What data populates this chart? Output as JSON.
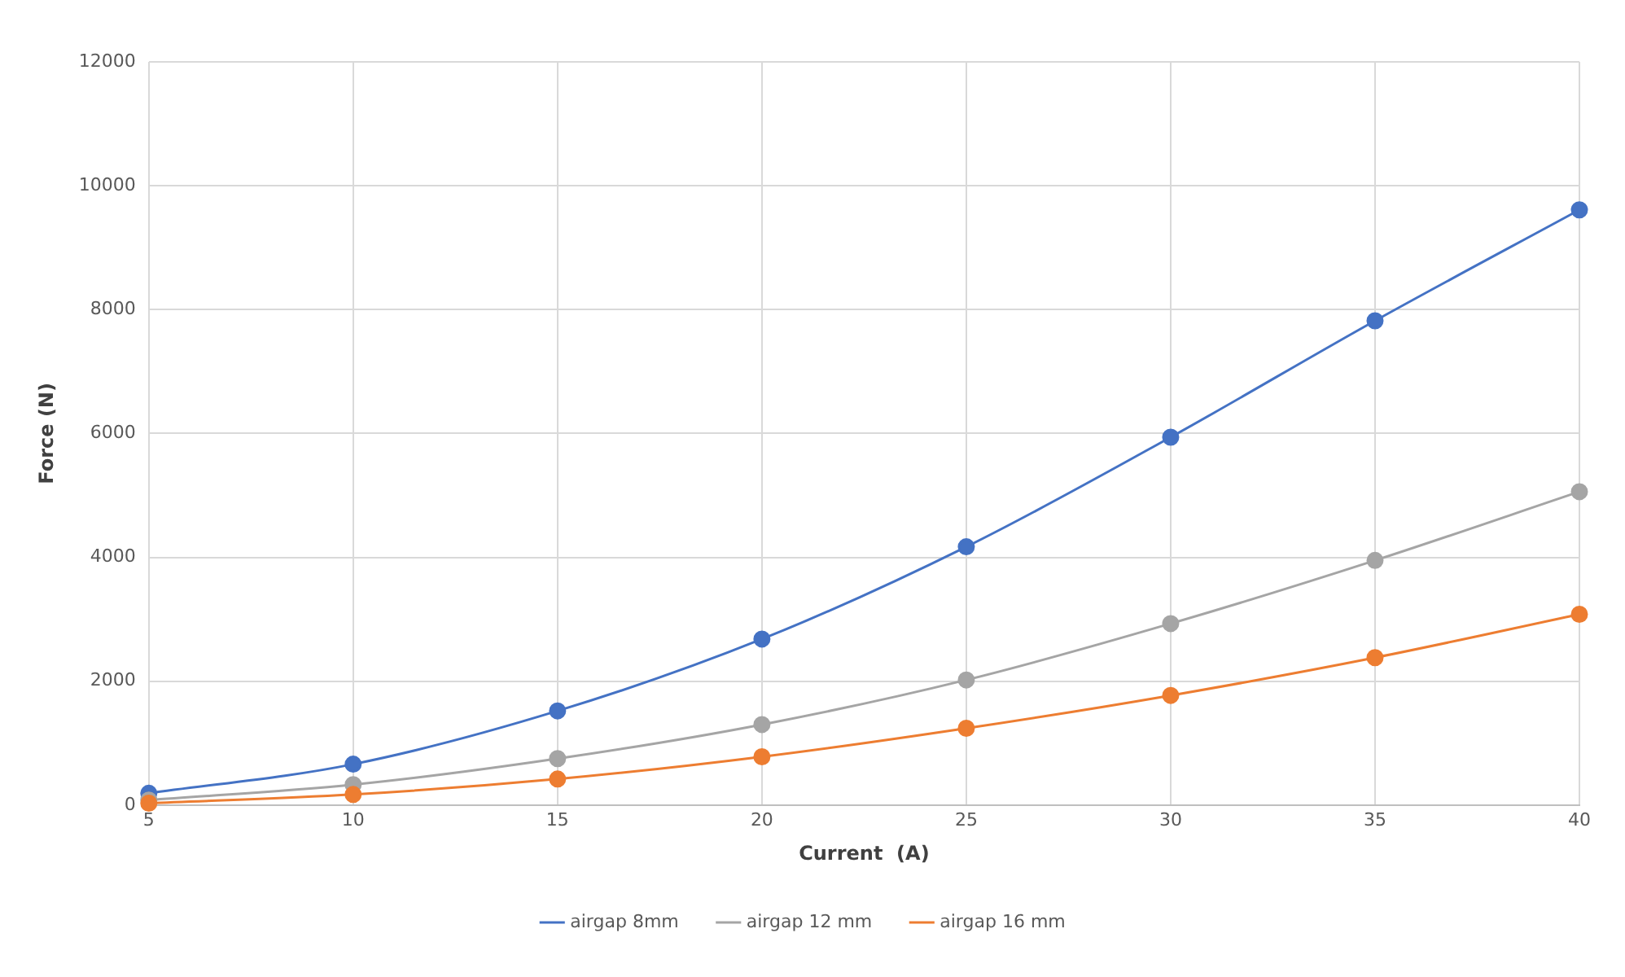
{
  "chart_data": {
    "type": "line",
    "xlabel": "Current  (A)",
    "ylabel": "Force (N)",
    "x": [
      5,
      10,
      15,
      20,
      25,
      30,
      35,
      40
    ],
    "series": [
      {
        "name": "airgap 8mm",
        "color": "#4472c4",
        "values": [
          190,
          660,
          1520,
          2680,
          4170,
          5940,
          7820,
          9610
        ]
      },
      {
        "name": "airgap 12 mm",
        "color": "#a5a5a5",
        "values": [
          80,
          330,
          750,
          1300,
          2020,
          2930,
          3950,
          5060
        ]
      },
      {
        "name": "airgap 16 mm",
        "color": "#ed7d31",
        "values": [
          30,
          170,
          420,
          780,
          1240,
          1770,
          2380,
          3080
        ]
      }
    ],
    "xlim": [
      5,
      40
    ],
    "xticks": [
      5,
      10,
      15,
      20,
      25,
      30,
      35,
      40
    ],
    "ylim": [
      0,
      12000
    ],
    "yticks": [
      0,
      2000,
      4000,
      6000,
      8000,
      10000,
      12000
    ],
    "grid": true,
    "legend": "bottom",
    "marker": "circle",
    "line_style": "solid"
  }
}
